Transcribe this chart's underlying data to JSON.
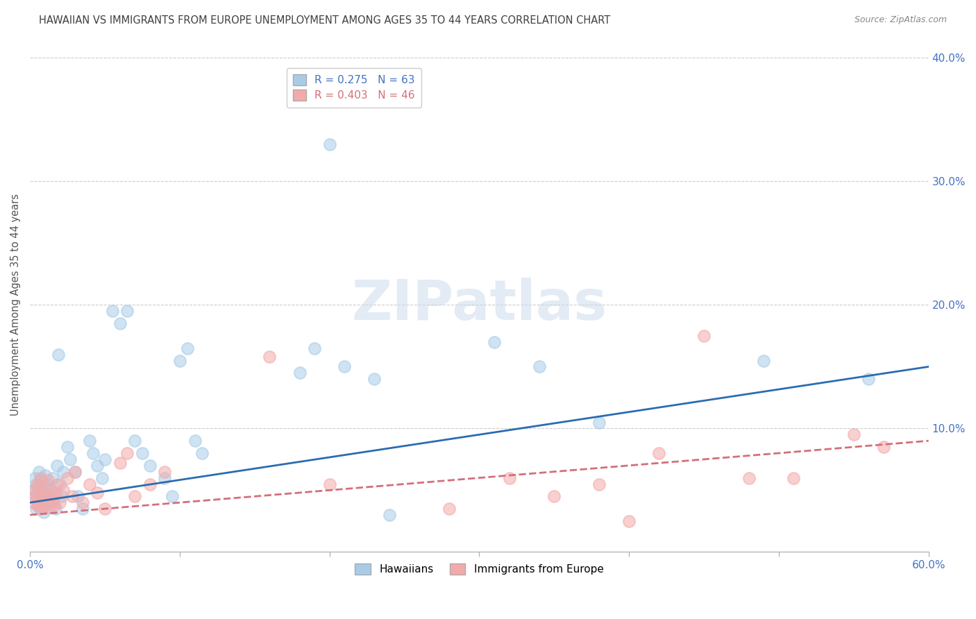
{
  "title": "HAWAIIAN VS IMMIGRANTS FROM EUROPE UNEMPLOYMENT AMONG AGES 35 TO 44 YEARS CORRELATION CHART",
  "source": "Source: ZipAtlas.com",
  "ylabel": "Unemployment Among Ages 35 to 44 years",
  "xlim": [
    0.0,
    0.6
  ],
  "ylim": [
    0.0,
    0.4
  ],
  "xticks": [
    0.0,
    0.1,
    0.2,
    0.3,
    0.4,
    0.5,
    0.6
  ],
  "xticklabels": [
    "0.0%",
    "",
    "",
    "",
    "",
    "",
    "60.0%"
  ],
  "yticks": [
    0.0,
    0.1,
    0.2,
    0.3,
    0.4
  ],
  "yticklabels_left": [
    "",
    "",
    "",
    "",
    ""
  ],
  "yticklabels_right": [
    "",
    "10.0%",
    "20.0%",
    "30.0%",
    "40.0%"
  ],
  "hawaiians_R": 0.275,
  "hawaiians_N": 63,
  "immigrants_R": 0.403,
  "immigrants_N": 46,
  "blue_color": "#a8cce8",
  "pink_color": "#f4aaaa",
  "blue_line_color": "#2b6cb0",
  "pink_line_color": "#d46f7a",
  "axis_label_color": "#4472C4",
  "title_color": "#404040",
  "watermark_text": "ZIPatlas",
  "blue_trend": [
    0.04,
    0.15
  ],
  "pink_trend": [
    0.03,
    0.09
  ],
  "hawaiians_x": [
    0.002,
    0.003,
    0.003,
    0.004,
    0.004,
    0.005,
    0.005,
    0.006,
    0.006,
    0.007,
    0.007,
    0.008,
    0.008,
    0.009,
    0.009,
    0.01,
    0.01,
    0.011,
    0.011,
    0.012,
    0.013,
    0.014,
    0.015,
    0.016,
    0.017,
    0.018,
    0.019,
    0.02,
    0.021,
    0.022,
    0.025,
    0.027,
    0.03,
    0.032,
    0.035,
    0.04,
    0.042,
    0.045,
    0.048,
    0.05,
    0.055,
    0.06,
    0.065,
    0.07,
    0.075,
    0.08,
    0.09,
    0.095,
    0.1,
    0.105,
    0.11,
    0.115,
    0.18,
    0.19,
    0.2,
    0.21,
    0.23,
    0.24,
    0.31,
    0.34,
    0.38,
    0.49,
    0.56
  ],
  "hawaiians_y": [
    0.05,
    0.045,
    0.06,
    0.035,
    0.055,
    0.048,
    0.038,
    0.052,
    0.065,
    0.042,
    0.058,
    0.036,
    0.046,
    0.054,
    0.032,
    0.062,
    0.044,
    0.038,
    0.048,
    0.055,
    0.04,
    0.05,
    0.06,
    0.045,
    0.035,
    0.07,
    0.16,
    0.055,
    0.045,
    0.065,
    0.085,
    0.075,
    0.065,
    0.045,
    0.035,
    0.09,
    0.08,
    0.07,
    0.06,
    0.075,
    0.195,
    0.185,
    0.195,
    0.09,
    0.08,
    0.07,
    0.06,
    0.045,
    0.155,
    0.165,
    0.09,
    0.08,
    0.145,
    0.165,
    0.33,
    0.15,
    0.14,
    0.03,
    0.17,
    0.15,
    0.105,
    0.155,
    0.14
  ],
  "immigrants_x": [
    0.002,
    0.003,
    0.004,
    0.005,
    0.005,
    0.006,
    0.007,
    0.007,
    0.008,
    0.009,
    0.01,
    0.011,
    0.012,
    0.013,
    0.014,
    0.015,
    0.016,
    0.017,
    0.018,
    0.02,
    0.022,
    0.025,
    0.028,
    0.03,
    0.035,
    0.04,
    0.045,
    0.05,
    0.06,
    0.065,
    0.07,
    0.08,
    0.09,
    0.16,
    0.2,
    0.28,
    0.32,
    0.35,
    0.38,
    0.4,
    0.42,
    0.45,
    0.48,
    0.51,
    0.55,
    0.57
  ],
  "immigrants_y": [
    0.04,
    0.05,
    0.045,
    0.038,
    0.055,
    0.042,
    0.035,
    0.06,
    0.048,
    0.038,
    0.052,
    0.044,
    0.058,
    0.036,
    0.046,
    0.042,
    0.038,
    0.048,
    0.055,
    0.04,
    0.05,
    0.06,
    0.045,
    0.065,
    0.04,
    0.055,
    0.048,
    0.035,
    0.072,
    0.08,
    0.045,
    0.055,
    0.065,
    0.158,
    0.055,
    0.035,
    0.06,
    0.045,
    0.055,
    0.025,
    0.08,
    0.175,
    0.06,
    0.06,
    0.095,
    0.085
  ]
}
